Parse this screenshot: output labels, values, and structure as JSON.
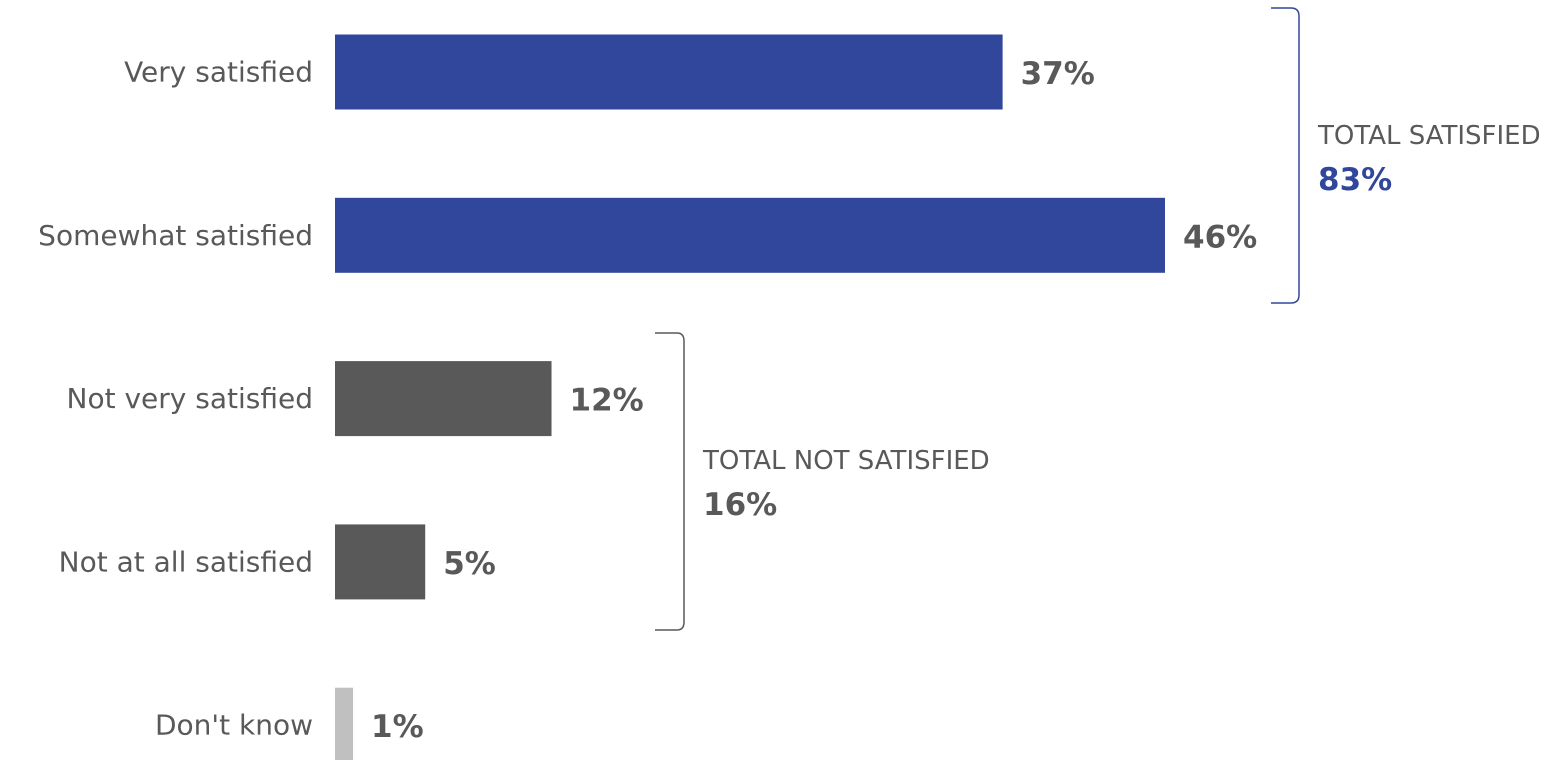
{
  "chart_data": {
    "type": "bar",
    "orientation": "horizontal",
    "categories": [
      "Very satisfied",
      "Somewhat satisfied",
      "Not very satisfied",
      "Not at all satisfied",
      "Don't know"
    ],
    "values": [
      37,
      46,
      12,
      5,
      1
    ],
    "value_labels": [
      "37%",
      "46%",
      "12%",
      "5%",
      "1%"
    ],
    "bar_colors": [
      "#31479b",
      "#31479b",
      "#595959",
      "#595959",
      "#c0c0c0"
    ],
    "xlim": [
      0,
      46
    ],
    "grid": false,
    "groups": [
      {
        "title": "TOTAL SATISFIED",
        "value": "83%",
        "members": [
          "Very satisfied",
          "Somewhat satisfied"
        ],
        "bracket_color": "#31479b",
        "value_color": "#31479b"
      },
      {
        "title": "TOTAL NOT SATISFIED",
        "value": "16%",
        "members": [
          "Not very satisfied",
          "Not at all satisfied"
        ],
        "bracket_color": "#595959",
        "value_color": "#595959"
      }
    ]
  },
  "colors": {
    "label_text": "#595959"
  }
}
